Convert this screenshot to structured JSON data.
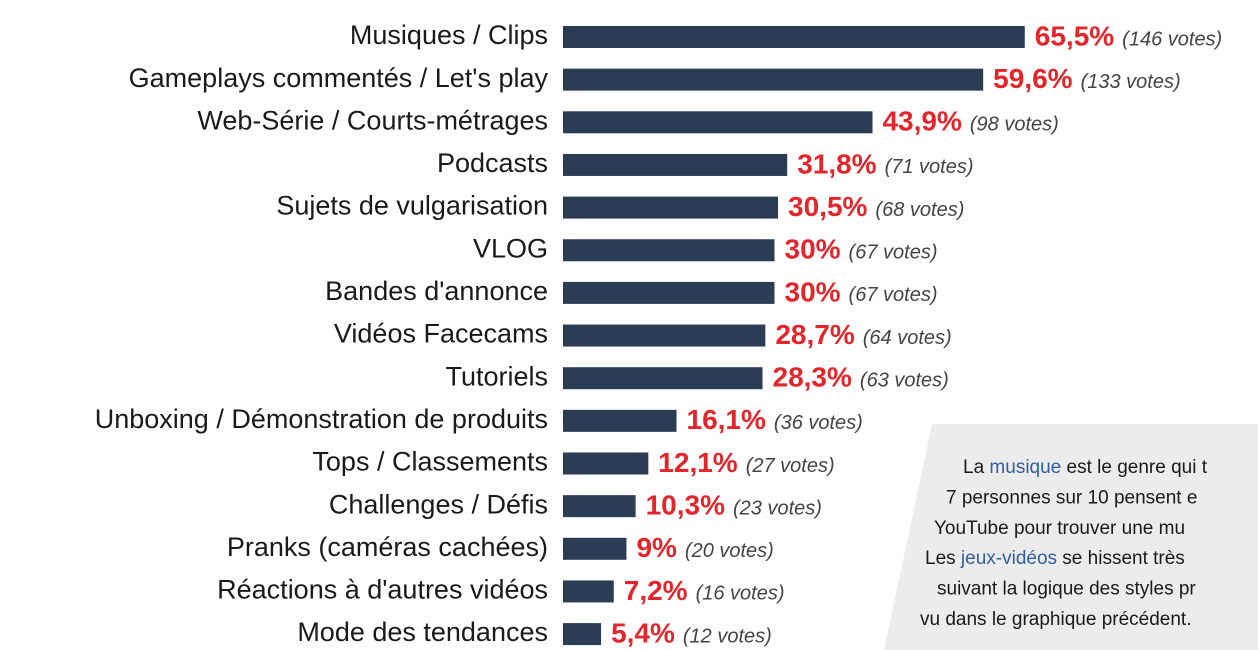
{
  "chart_data": {
    "type": "hbar",
    "categories": [
      "Musiques / Clips",
      "Gameplays commentés / Let's play",
      "Web-Série / Courts-métrages",
      "Podcasts",
      "Sujets de vulgarisation",
      "VLOG",
      "Bandes d'annonce",
      "Vidéos Facecams",
      "Tutoriels",
      "Unboxing / Démonstration de produits",
      "Tops / Classements",
      "Challenges / Défis",
      "Pranks (caméras cachées)",
      "Réactions à d'autres vidéos",
      "Mode des tendances"
    ],
    "values": [
      65.5,
      59.6,
      43.9,
      31.8,
      30.5,
      30,
      30,
      28.7,
      28.3,
      16.1,
      12.1,
      10.3,
      9,
      7.2,
      5.4
    ],
    "value_labels": [
      "65,5%",
      "59,6%",
      "43,9%",
      "31,8%",
      "30,5%",
      "30%",
      "30%",
      "28,7%",
      "28,3%",
      "16,1%",
      "12,1%",
      "10,3%",
      "9%",
      "7,2%",
      "5,4%"
    ],
    "vote_labels": [
      "(146 votes)",
      "(133 votes)",
      "(98 votes)",
      "(71 votes)",
      "(68 votes)",
      "(67 votes)",
      "(67 votes)",
      "(64 votes)",
      "(63 votes)",
      "(36 votes)",
      "(27 votes)",
      "(23 votes)",
      "(20 votes)",
      "(16 votes)",
      "(12 votes)"
    ],
    "color": "#2b3d55",
    "value_label_color": "#e3262b",
    "xlim": [
      0,
      70
    ],
    "annotation": {
      "highlight_color": "#2f5fa0",
      "lines": [
        [
          {
            "text": "La "
          },
          {
            "text": "musique",
            "highlight": true
          },
          {
            "text": " est le genre qui t"
          }
        ],
        [
          {
            "text": "7 personnes sur 10 pensent e"
          }
        ],
        [
          {
            "text": "YouTube pour trouver une mu"
          }
        ],
        [
          {
            "text": "Les "
          },
          {
            "text": "jeux-vidéos",
            "highlight": true
          },
          {
            "text": " se hissent très"
          }
        ],
        [
          {
            "text": "suivant la logique des styles pr"
          }
        ],
        [
          {
            "text": "vu dans le graphique précédent."
          }
        ]
      ]
    }
  }
}
